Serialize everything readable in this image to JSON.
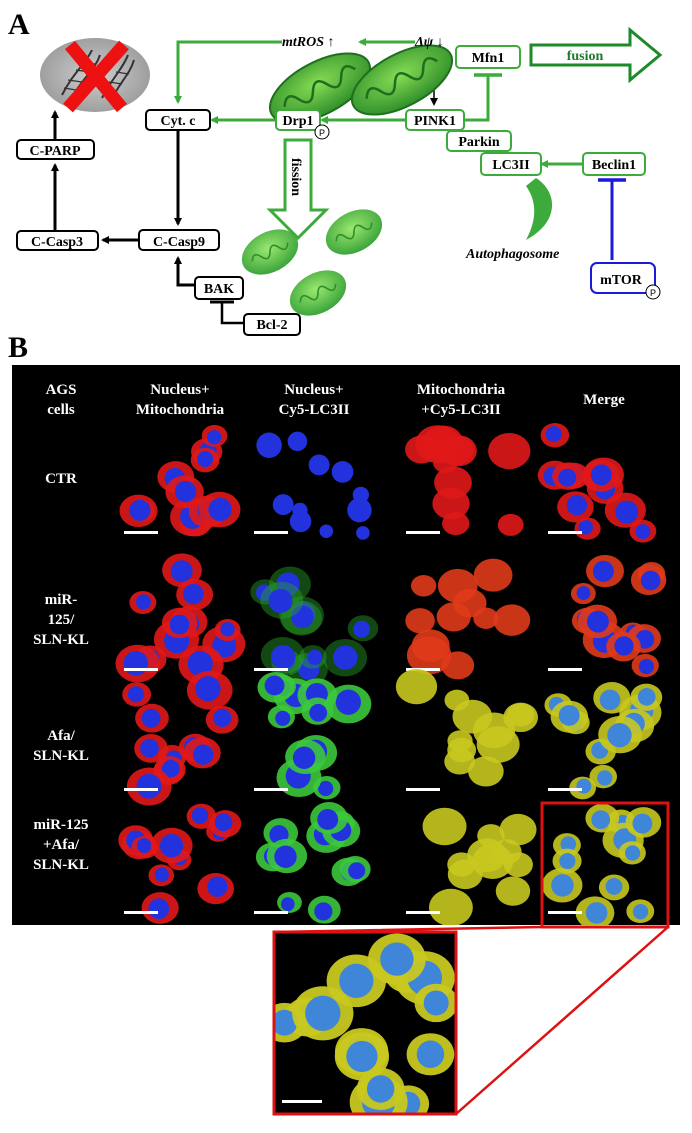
{
  "panel_a": {
    "letter": "A",
    "nodes": {
      "cparp": "C-PARP",
      "ccasp3": "C-Casp3",
      "ccasp9": "C-Casp9",
      "cytc": "Cyt. c",
      "bak": "BAK",
      "bcl2": "Bcl-2",
      "drp1": "Drp1",
      "pink1": "PINK1",
      "mfn1": "Mfn1",
      "parkin": "Parkin",
      "lc3ii": "LC3II",
      "beclin1": "Beclin1",
      "mtor": "mTOR"
    },
    "phospho_badge": "P",
    "labels": {
      "mtros": "mtROS ↑",
      "dpsi": "Δψ ↓",
      "fusion": "fusion",
      "fission": "fission",
      "autophagosome": "Autophagosome"
    },
    "colors": {
      "green": "#3cab3c",
      "black": "#000000",
      "blue": "#1a1ad8",
      "red_x": "#ee1111"
    }
  },
  "panel_b": {
    "letter": "B",
    "corner_label": [
      "AGS",
      "cells"
    ],
    "column_headers": [
      [
        "Nucleus+",
        "Mitochondria"
      ],
      [
        "Nucleus+",
        "Cy5-LC3II"
      ],
      [
        "Mitochondria",
        "+Cy5-LC3II"
      ],
      [
        "Merge"
      ]
    ],
    "rows": [
      [
        "CTR"
      ],
      [
        "miR-",
        "125/",
        "SLN-KL"
      ],
      [
        "Afa/",
        "SLN-KL"
      ],
      [
        "miR-125",
        "+Afa/",
        "SLN-KL"
      ]
    ],
    "highlight_color": "#dd1111"
  }
}
